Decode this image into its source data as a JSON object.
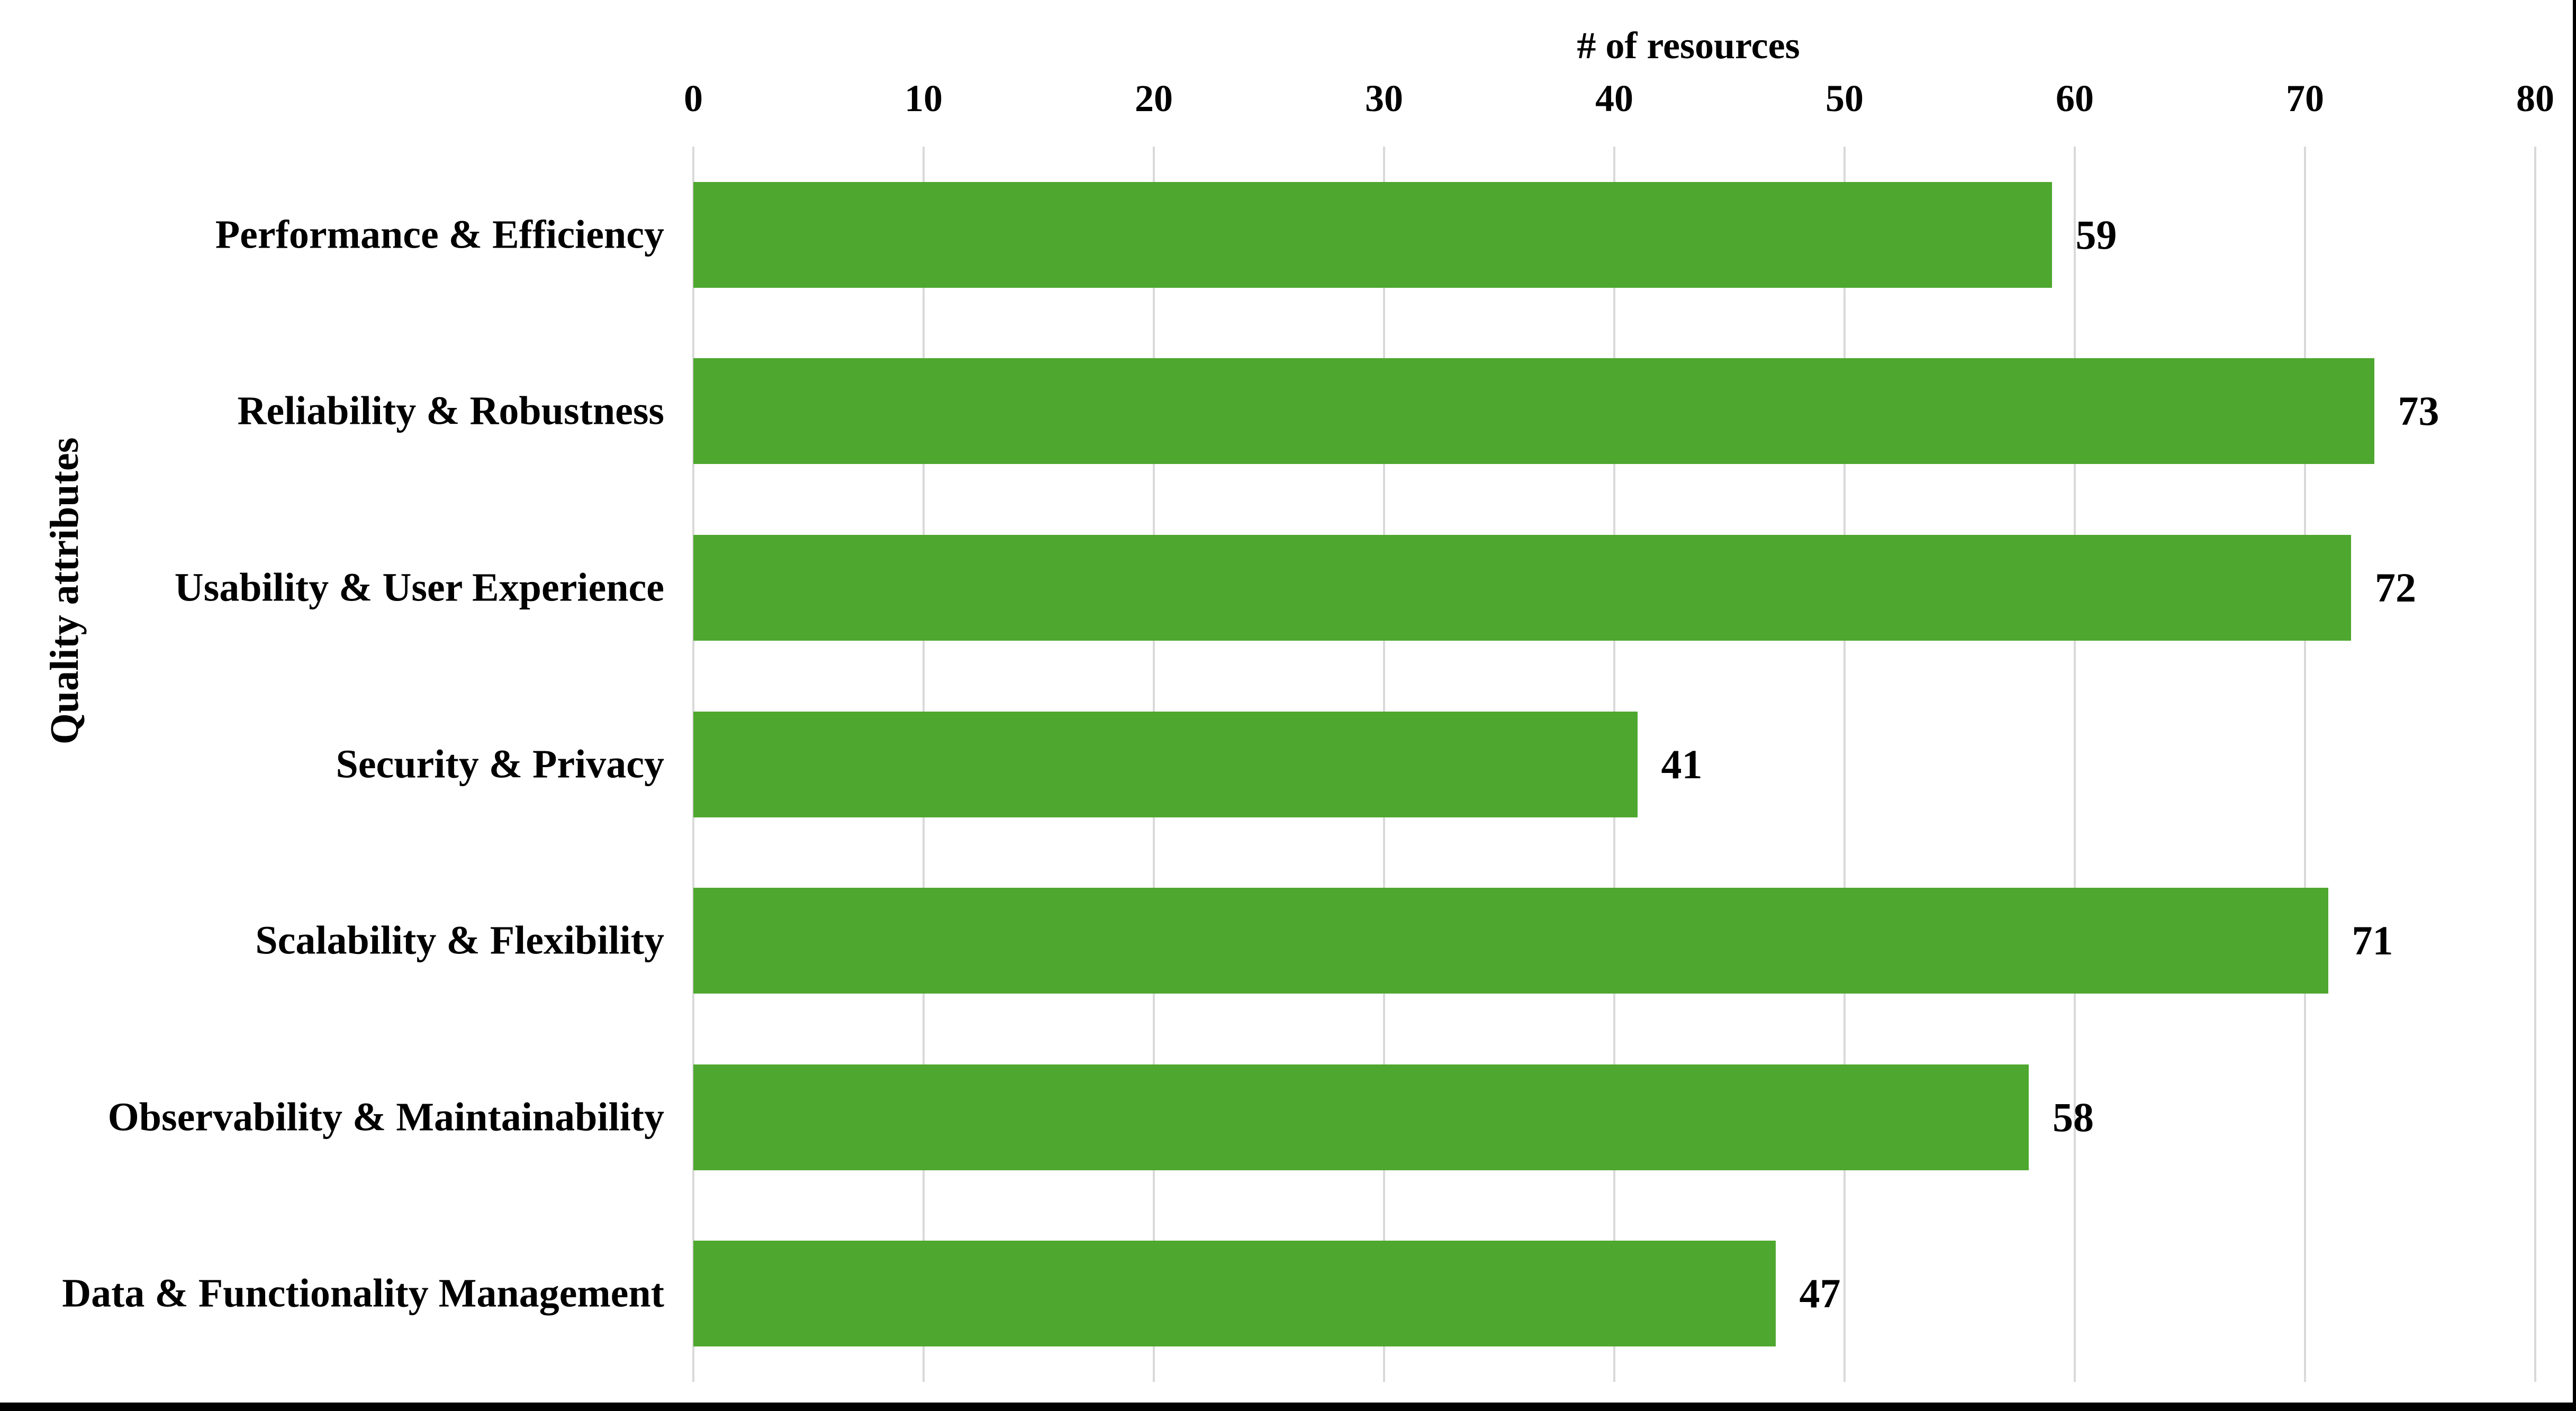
{
  "chart_data": {
    "type": "bar",
    "orientation": "horizontal",
    "xlabel": "# of resources",
    "ylabel": "Quality attributes",
    "categories": [
      "Performance & Efficiency",
      "Reliability & Robustness",
      "Usability & User Experience",
      "Security & Privacy",
      "Scalability & Flexibility",
      "Observability & Maintainability",
      "Data & Functionality Management"
    ],
    "values": [
      59,
      73,
      72,
      41,
      71,
      58,
      47
    ],
    "xlim": [
      0,
      80
    ],
    "x_ticks": [
      0,
      10,
      20,
      30,
      40,
      50,
      60,
      70,
      80
    ],
    "grid": true,
    "data_labels": true,
    "legend": "none",
    "bar_color": "#4ea72e",
    "gridline_color": "#d9d9d9",
    "text_color": "#000000",
    "background_color": "#ffffff",
    "border_color": "#000000"
  }
}
